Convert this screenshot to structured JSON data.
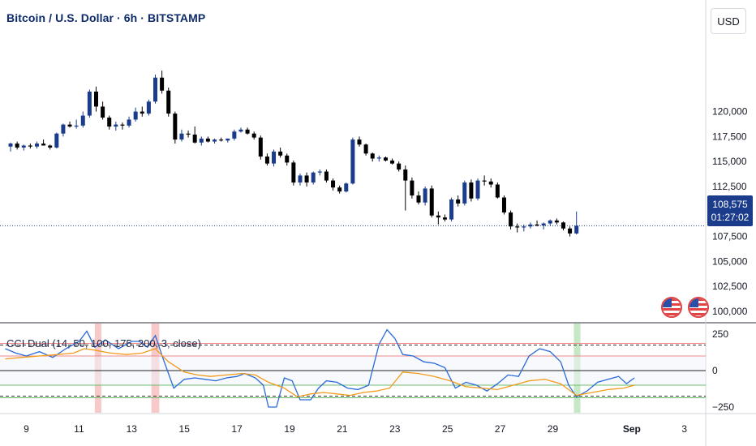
{
  "header": {
    "title": "Bitcoin / U.S. Dollar · 6h · BITSTAMP",
    "currency_button": "USD"
  },
  "price_tag": {
    "price": "108,575",
    "countdown": "01:27:02"
  },
  "indicator": {
    "title": "CCI Dual (14, 50, 100, 175, 200, 3, close)"
  },
  "colors": {
    "up": "#1a3c8a",
    "down": "#000000",
    "cci_fast": "#2a6ad8",
    "cci_slow": "#f29a1c",
    "upper_band": "#f28b8b",
    "lower_band": "#6dbb6d",
    "dashed": "#333333"
  },
  "icons": [
    "us-flag-icon",
    "us-flag-icon"
  ],
  "chart_data": [
    {
      "type": "candlestick",
      "title": "Bitcoin / U.S. Dollar · 6h · BITSTAMP",
      "y_ticks": [
        100000,
        102500,
        105000,
        107500,
        110000,
        112500,
        115000,
        117500,
        120000
      ],
      "y_tick_labels": [
        "100,000",
        "102,500",
        "105,000",
        "107,500",
        "110,000",
        "112,500",
        "115,000",
        "117,500",
        "120,000"
      ],
      "x_tick_labels": [
        "9",
        "11",
        "13",
        "15",
        "17",
        "19",
        "21",
        "23",
        "25",
        "27",
        "29",
        "Sep",
        "3"
      ],
      "x_tick_days": [
        9,
        11,
        13,
        15,
        17,
        19,
        21,
        23,
        25,
        27,
        29,
        32,
        34
      ],
      "candles_per_day": 4,
      "first_candle_day": 8.4,
      "last_price": 108575,
      "candles": [
        [
          116500,
          116900,
          116000,
          116800
        ],
        [
          116800,
          117000,
          116200,
          116400
        ],
        [
          116400,
          116700,
          116100,
          116600
        ],
        [
          116600,
          116800,
          116300,
          116500
        ],
        [
          116500,
          117000,
          116300,
          116800
        ],
        [
          116800,
          117200,
          116600,
          116600
        ],
        [
          116600,
          116700,
          116200,
          116400
        ],
        [
          116400,
          117900,
          116300,
          117800
        ],
        [
          117800,
          118800,
          117500,
          118700
        ],
        [
          118700,
          119000,
          118400,
          118500
        ],
        [
          118500,
          119200,
          118300,
          118600
        ],
        [
          118600,
          120000,
          118400,
          119600
        ],
        [
          119600,
          122200,
          119400,
          122000
        ],
        [
          122000,
          122500,
          120000,
          120500
        ],
        [
          120500,
          121000,
          119200,
          119400
        ],
        [
          119400,
          119600,
          118200,
          118500
        ],
        [
          118500,
          119000,
          118100,
          118700
        ],
        [
          118700,
          118900,
          118200,
          118600
        ],
        [
          118600,
          119500,
          118400,
          119200
        ],
        [
          119200,
          120400,
          119000,
          120000
        ],
        [
          120000,
          120500,
          119500,
          119800
        ],
        [
          119800,
          121200,
          119600,
          121000
        ],
        [
          121000,
          123700,
          120800,
          123400
        ],
        [
          123400,
          124100,
          121800,
          122100
        ],
        [
          122100,
          122400,
          119500,
          119800
        ],
        [
          119800,
          120000,
          116800,
          117200
        ],
        [
          117200,
          118200,
          117000,
          117800
        ],
        [
          117800,
          118100,
          117400,
          117700
        ],
        [
          117700,
          118500,
          116800,
          116900
        ],
        [
          116900,
          117500,
          116600,
          117300
        ],
        [
          117300,
          117500,
          116900,
          117000
        ],
        [
          117000,
          117300,
          116800,
          117200
        ],
        [
          117200,
          117400,
          117000,
          117100
        ],
        [
          117100,
          117300,
          116900,
          117300
        ],
        [
          117300,
          118200,
          117100,
          118000
        ],
        [
          118000,
          118400,
          117900,
          118200
        ],
        [
          118200,
          118400,
          117700,
          117800
        ],
        [
          117800,
          118000,
          117200,
          117400
        ],
        [
          117400,
          117600,
          115200,
          115500
        ],
        [
          115500,
          115800,
          114600,
          114800
        ],
        [
          114800,
          116200,
          114500,
          116000
        ],
        [
          116000,
          116400,
          115400,
          115600
        ],
        [
          115600,
          115800,
          114600,
          114900
        ],
        [
          114900,
          115100,
          112600,
          112900
        ],
        [
          112900,
          113800,
          112600,
          113600
        ],
        [
          113600,
          113900,
          112500,
          112900
        ],
        [
          112900,
          114000,
          112700,
          113900
        ],
        [
          113900,
          114200,
          113600,
          114000
        ],
        [
          114000,
          114200,
          112900,
          113100
        ],
        [
          113100,
          113300,
          112100,
          112400
        ],
        [
          112400,
          112600,
          111800,
          112000
        ],
        [
          112000,
          112900,
          111900,
          112800
        ],
        [
          112800,
          117400,
          112700,
          117200
        ],
        [
          117200,
          117500,
          116500,
          116700
        ],
        [
          116700,
          116800,
          115600,
          115800
        ],
        [
          115800,
          115900,
          115000,
          115300
        ],
        [
          115300,
          115600,
          115000,
          115400
        ],
        [
          115400,
          115500,
          115000,
          115100
        ],
        [
          115100,
          115300,
          114700,
          114800
        ],
        [
          114800,
          115000,
          114000,
          114200
        ],
        [
          114200,
          114600,
          110100,
          113100
        ],
        [
          113100,
          113400,
          111300,
          111600
        ],
        [
          111600,
          112000,
          110700,
          110900
        ],
        [
          110900,
          112500,
          110600,
          112300
        ],
        [
          112300,
          112600,
          109400,
          109600
        ],
        [
          109600,
          110000,
          108700,
          109400
        ],
        [
          109400,
          109700,
          109000,
          109200
        ],
        [
          109200,
          111400,
          109000,
          111200
        ],
        [
          111200,
          111600,
          110500,
          110800
        ],
        [
          110800,
          113100,
          110600,
          112900
        ],
        [
          112900,
          113200,
          111000,
          111300
        ],
        [
          111300,
          113300,
          111100,
          113100
        ],
        [
          113100,
          113600,
          112600,
          113000
        ],
        [
          113000,
          113300,
          112400,
          112700
        ],
        [
          112700,
          112900,
          111300,
          111400
        ],
        [
          111400,
          111600,
          109700,
          109900
        ],
        [
          109900,
          110100,
          108200,
          108500
        ],
        [
          108500,
          108800,
          107900,
          108400
        ],
        [
          108400,
          108700,
          108000,
          108500
        ],
        [
          108500,
          108900,
          108300,
          108700
        ],
        [
          108700,
          109100,
          108500,
          108600
        ],
        [
          108600,
          108900,
          108200,
          108800
        ],
        [
          108800,
          109200,
          108600,
          109100
        ],
        [
          109100,
          109300,
          108700,
          108900
        ],
        [
          108900,
          109000,
          108100,
          108300
        ],
        [
          108300,
          108500,
          107500,
          107800
        ],
        [
          107800,
          110000,
          107700,
          108575
        ]
      ]
    },
    {
      "type": "line",
      "title": "CCI Dual (14, 50, 100, 175, 200, 3, close)",
      "y_ticks": [
        250,
        0,
        -250
      ],
      "y_tick_labels": [
        "250",
        "0",
        "−250"
      ],
      "levels": {
        "upper_dashed": 175,
        "upper_band": 100,
        "zero": 0,
        "lower_band": -100,
        "lower_dashed": -175
      },
      "highlights": [
        {
          "day_start": 11.6,
          "day_end": 11.85,
          "color": "#f7c9c9"
        },
        {
          "day_start": 13.75,
          "day_end": 14.05,
          "color": "#f7c9c9"
        },
        {
          "day_start": 29.8,
          "day_end": 30.05,
          "color": "#c7e8c7"
        }
      ],
      "series": [
        {
          "name": "",
          "color": "#2a6ad8",
          "x_days": [
            8.2,
            8.6,
            9,
            9.5,
            10,
            10.5,
            11,
            11.3,
            11.6,
            12,
            12.5,
            13,
            13.3,
            13.6,
            13.9,
            14.2,
            14.6,
            15,
            15.4,
            15.8,
            16.2,
            16.6,
            17,
            17.3,
            17.7,
            18,
            18.2,
            18.5,
            18.8,
            19.1,
            19.4,
            19.8,
            20.1,
            20.4,
            20.8,
            21.2,
            21.6,
            22,
            22.4,
            22.7,
            23,
            23.3,
            23.7,
            24.1,
            24.5,
            24.9,
            25.3,
            25.7,
            26.1,
            26.5,
            26.9,
            27.3,
            27.7,
            28.1,
            28.5,
            28.9,
            29.3,
            29.6,
            29.9,
            30.3,
            30.7,
            31.1,
            31.5,
            31.8,
            32.1
          ],
          "values": [
            150,
            120,
            100,
            130,
            90,
            150,
            200,
            270,
            160,
            210,
            150,
            200,
            200,
            160,
            240,
            80,
            -120,
            -60,
            -50,
            -60,
            -70,
            -50,
            -40,
            -20,
            -50,
            -100,
            -250,
            -250,
            -50,
            -70,
            -200,
            -200,
            -120,
            -70,
            -80,
            -120,
            -130,
            -100,
            180,
            280,
            220,
            110,
            100,
            60,
            50,
            20,
            -120,
            -80,
            -100,
            -140,
            -90,
            -30,
            -40,
            100,
            150,
            130,
            60,
            -100,
            -180,
            -140,
            -80,
            -60,
            -40,
            -90,
            -50
          ]
        },
        {
          "name": "",
          "color": "#f29a1c",
          "x_days": [
            8.2,
            8.8,
            9.5,
            10.2,
            10.8,
            11.2,
            11.6,
            12.2,
            12.8,
            13.4,
            13.9,
            14.4,
            15,
            15.5,
            16,
            16.6,
            17.2,
            17.7,
            18.2,
            18.8,
            19.3,
            19.8,
            20.3,
            20.8,
            21.3,
            21.8,
            22.3,
            22.8,
            23.3,
            23.9,
            24.5,
            25.1,
            25.7,
            26.3,
            26.9,
            27.5,
            28.1,
            28.7,
            29.3,
            29.9,
            30.5,
            31.1,
            31.7,
            32.1
          ],
          "values": [
            80,
            90,
            100,
            110,
            120,
            150,
            140,
            120,
            110,
            120,
            150,
            60,
            -10,
            -30,
            -40,
            -30,
            -20,
            -30,
            -80,
            -120,
            -180,
            -160,
            -150,
            -160,
            -170,
            -150,
            -140,
            -120,
            -10,
            -20,
            -40,
            -70,
            -110,
            -120,
            -130,
            -100,
            -70,
            -60,
            -90,
            -170,
            -150,
            -130,
            -120,
            -100
          ]
        }
      ]
    }
  ]
}
